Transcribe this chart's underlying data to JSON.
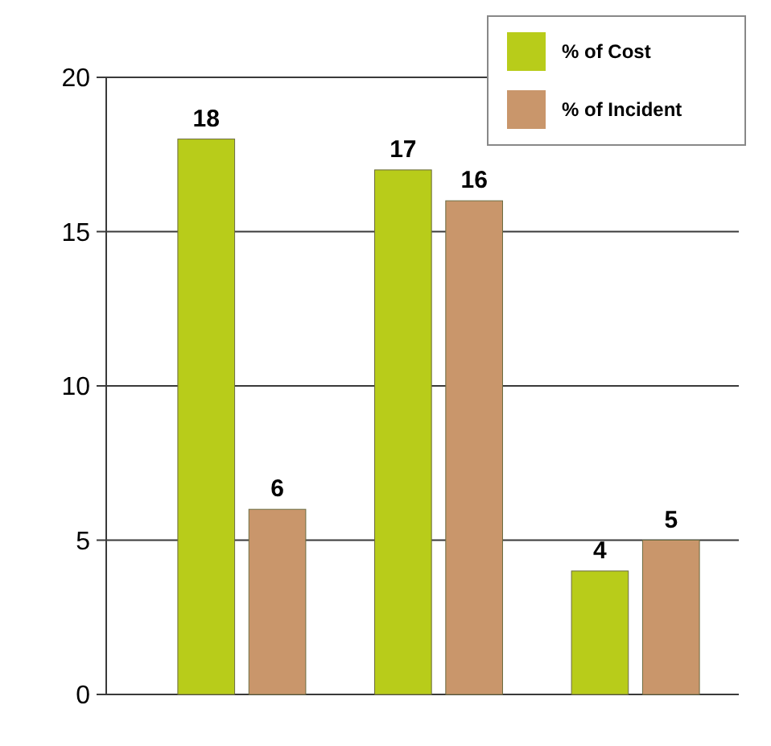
{
  "chart_data": {
    "type": "bar",
    "categories": [
      null,
      null,
      null
    ],
    "series": [
      {
        "name": "% of Cost",
        "color": "#b8cc1a",
        "values": [
          18,
          17,
          4
        ]
      },
      {
        "name": "% of Incident",
        "color": "#c9966b",
        "values": [
          6,
          16,
          5
        ]
      }
    ],
    "ylim": [
      0,
      20
    ],
    "yticks": [
      0,
      5,
      10,
      15,
      20
    ],
    "grid": "y",
    "legend": "top right",
    "data_labels": true
  }
}
